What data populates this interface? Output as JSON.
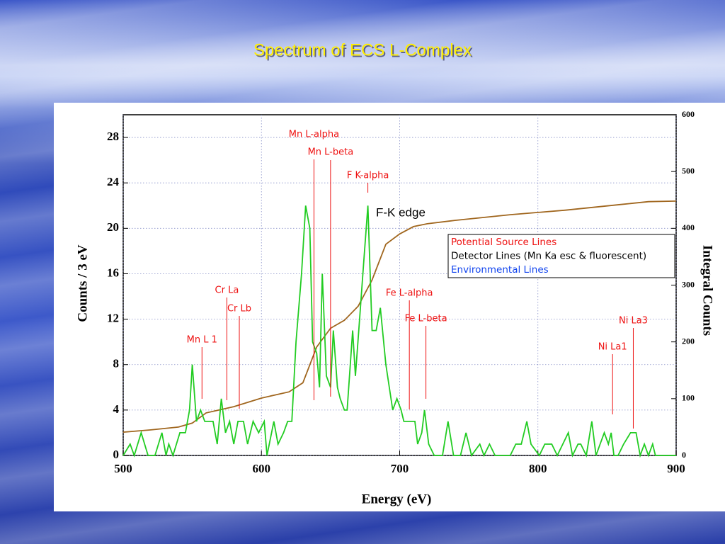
{
  "chart_data": {
    "type": "line",
    "title": "Spectrum of ECS L-Complex",
    "x_label": "Energy (eV)",
    "y_label": "Counts / 3 eV",
    "y2_label": "Integral Counts",
    "xlim": [
      500,
      900
    ],
    "xticks": [
      500,
      600,
      700,
      800,
      900
    ],
    "ylim": [
      0,
      30
    ],
    "yticks": [
      0,
      4,
      8,
      12,
      16,
      20,
      24,
      28
    ],
    "y2lim": [
      0,
      600
    ],
    "y2ticks": [
      0,
      100,
      200,
      300,
      400,
      500,
      600
    ],
    "grid": true,
    "series": [
      {
        "color": "#22cc22",
        "axis": "y",
        "x": [
          500,
          505,
          508,
          513,
          518,
          523,
          528,
          531,
          533,
          536,
          541,
          545,
          548,
          550,
          553,
          556,
          559,
          565,
          568,
          571,
          574,
          577,
          580,
          583,
          587,
          590,
          594,
          598,
          602,
          604,
          609,
          612,
          616,
          619,
          622,
          625,
          629,
          632,
          635,
          637,
          640,
          642,
          644,
          647,
          650,
          652,
          655,
          657,
          660,
          662,
          666,
          668,
          671,
          674,
          677,
          680,
          683,
          686,
          690,
          695,
          698,
          701,
          703,
          708,
          711,
          713,
          716,
          718,
          721,
          725,
          731,
          735,
          739,
          744,
          748,
          752,
          758,
          761,
          765,
          769,
          780,
          784,
          788,
          792,
          795,
          801,
          805,
          810,
          814,
          818,
          822,
          825,
          829,
          831,
          835,
          839,
          842,
          845,
          848,
          851,
          853,
          855,
          858,
          862,
          867,
          871,
          874,
          877,
          880,
          883,
          885,
          900
        ],
        "values": [
          0,
          1,
          0,
          2,
          0,
          0,
          2,
          0,
          1,
          0,
          2,
          2,
          4,
          8,
          3,
          4,
          3,
          3,
          1,
          5,
          2,
          3,
          1,
          3,
          3,
          1,
          3,
          2,
          3,
          0,
          3,
          1,
          2,
          3,
          3,
          10,
          16,
          22,
          20,
          10,
          9,
          6,
          16,
          7,
          6,
          11,
          6,
          5,
          4,
          4,
          11,
          7,
          12,
          17,
          22,
          11,
          11,
          13,
          8,
          4,
          5,
          4,
          3,
          3,
          3,
          1,
          2,
          4,
          1,
          0,
          0,
          3,
          0,
          0,
          2,
          0,
          1,
          0,
          1,
          0,
          0,
          1,
          1,
          3,
          1,
          0,
          1,
          1,
          0,
          1,
          2,
          0,
          1,
          1,
          0,
          3,
          0,
          1,
          2,
          1,
          2,
          0,
          0,
          1,
          2,
          2,
          0,
          1,
          0,
          1,
          0,
          0
        ]
      },
      {
        "color": "#a0661e",
        "axis": "y2",
        "x": [
          500,
          520,
          540,
          550,
          560,
          580,
          600,
          620,
          630,
          640,
          650,
          660,
          670,
          680,
          690,
          700,
          710,
          720,
          740,
          760,
          780,
          800,
          820,
          840,
          860,
          880,
          900
        ],
        "values": [
          41,
          45,
          50,
          57,
          75,
          86,
          101,
          112,
          128,
          191,
          224,
          238,
          263,
          309,
          372,
          390,
          403,
          408,
          414,
          419,
          424,
          428,
          432,
          437,
          442,
          447,
          448
        ]
      }
    ],
    "annotations": [
      {
        "text": "Mn L-alpha",
        "x": 638
      },
      {
        "text": "Mn L-beta",
        "x": 650
      },
      {
        "text": "F K-alpha",
        "x": 677
      },
      {
        "text": "Cr La",
        "x": 575
      },
      {
        "text": "Cr Lb",
        "x": 584
      },
      {
        "text": "Mn L 1",
        "x": 557
      },
      {
        "text": "Fe L-alpha",
        "x": 707
      },
      {
        "text": "Fe L-beta",
        "x": 719
      },
      {
        "text": "Ni La1",
        "x": 854
      },
      {
        "text": "Ni La3",
        "x": 869
      }
    ],
    "annotation_color": "#ee1111",
    "edge_label": "F-K edge",
    "legend": [
      {
        "label": "Potential Source Lines",
        "color": "#ee1111"
      },
      {
        "label": "Detector Lines (Mn Ka esc & fluorescent)",
        "color": "#000000"
      },
      {
        "label": "Environmental Lines",
        "color": "#1144ee"
      }
    ]
  }
}
